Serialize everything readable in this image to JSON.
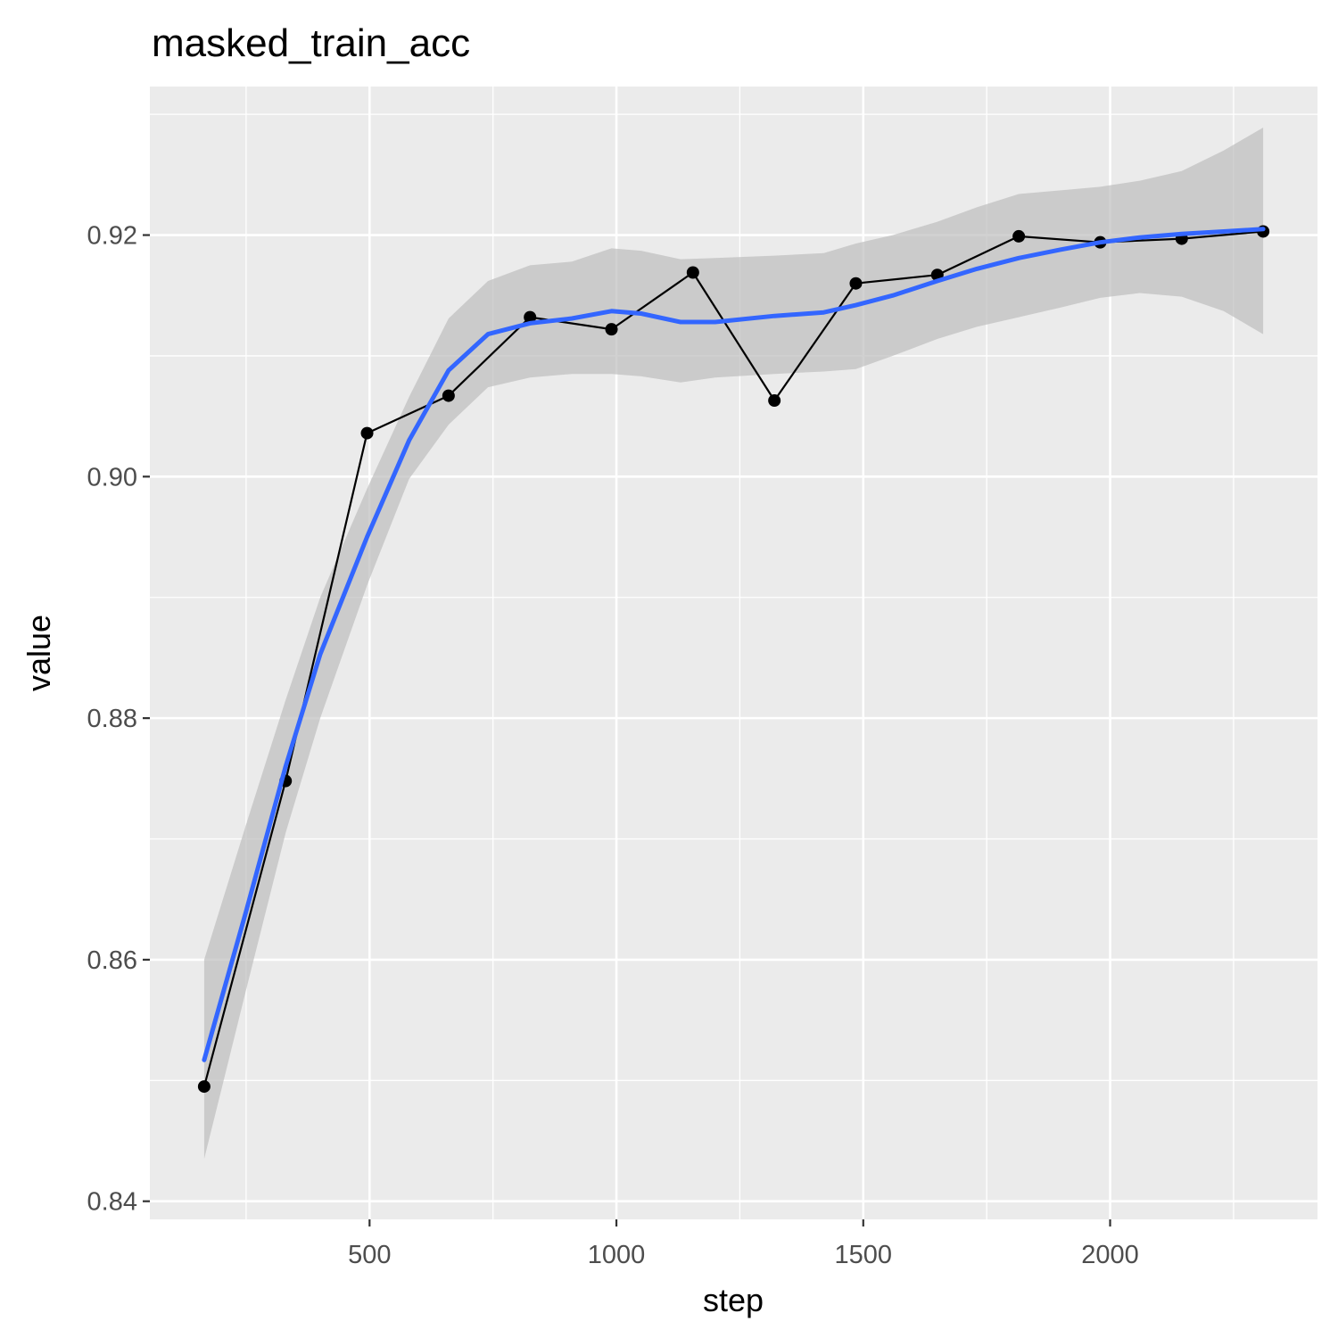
{
  "chart_data": {
    "type": "line",
    "title": "masked_train_acc",
    "xlabel": "step",
    "ylabel": "value",
    "xlim": [
      55,
      2420
    ],
    "ylim": [
      0.8385,
      0.9323
    ],
    "x_ticks": [
      500,
      1000,
      1500,
      2000
    ],
    "x_tick_labels": [
      "500",
      "1000",
      "1500",
      "2000"
    ],
    "x_minor_ticks": [
      250,
      750,
      1250,
      1750,
      2250
    ],
    "y_ticks": [
      0.84,
      0.86,
      0.88,
      0.9,
      0.92
    ],
    "y_tick_labels": [
      "0.84",
      "0.86",
      "0.88",
      "0.90",
      "0.92"
    ],
    "y_minor_ticks": [
      0.85,
      0.87,
      0.89,
      0.91,
      0.93
    ],
    "grid": true,
    "colors": {
      "panel_background": "#ebebeb",
      "grid": "#ffffff",
      "observed": "#000000",
      "smooth": "#3366ff",
      "ribbon": "#bdbdbd"
    },
    "series": [
      {
        "kind": "points-and-line",
        "x": [
          165,
          330,
          495,
          660,
          825,
          990,
          1155,
          1320,
          1485,
          1650,
          1815,
          1980,
          2145,
          2310
        ],
        "y": [
          0.8495,
          0.8748,
          0.9036,
          0.9067,
          0.9132,
          0.9122,
          0.9169,
          0.9063,
          0.916,
          0.9167,
          0.9199,
          0.9194,
          0.9197,
          0.9203
        ]
      },
      {
        "kind": "smooth",
        "x": [
          165,
          250,
          330,
          400,
          495,
          580,
          660,
          740,
          825,
          910,
          990,
          1050,
          1130,
          1200,
          1320,
          1420,
          1485,
          1560,
          1650,
          1730,
          1815,
          1900,
          1980,
          2060,
          2145,
          2230,
          2310
        ],
        "y": [
          0.8517,
          0.864,
          0.876,
          0.8853,
          0.895,
          0.903,
          0.9088,
          0.9118,
          0.9127,
          0.9131,
          0.9137,
          0.9135,
          0.9128,
          0.9128,
          0.9133,
          0.9136,
          0.9142,
          0.915,
          0.9162,
          0.9172,
          0.9181,
          0.9188,
          0.9194,
          0.9198,
          0.9201,
          0.9203,
          0.9205
        ],
        "lower": [
          0.8435,
          0.8575,
          0.8705,
          0.88,
          0.891,
          0.8998,
          0.9043,
          0.9074,
          0.9082,
          0.9085,
          0.9085,
          0.9083,
          0.9078,
          0.9082,
          0.9085,
          0.9087,
          0.9089,
          0.91,
          0.9114,
          0.9124,
          0.9132,
          0.914,
          0.9148,
          0.9152,
          0.9149,
          0.9137,
          0.9118
        ],
        "upper": [
          0.86,
          0.8712,
          0.8815,
          0.89,
          0.899,
          0.9066,
          0.9131,
          0.9162,
          0.9175,
          0.9178,
          0.9189,
          0.9187,
          0.918,
          0.9181,
          0.9183,
          0.9185,
          0.9193,
          0.92,
          0.9211,
          0.9223,
          0.9234,
          0.9237,
          0.924,
          0.9245,
          0.9253,
          0.927,
          0.9289
        ]
      }
    ]
  }
}
